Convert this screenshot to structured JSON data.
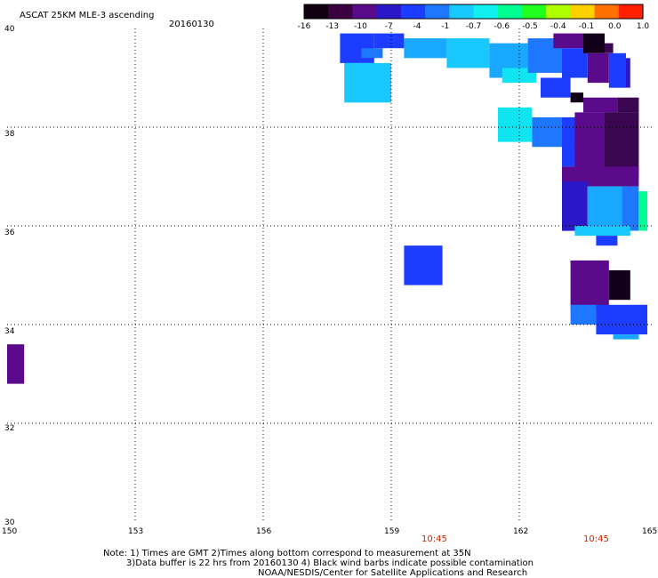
{
  "title": "ASCAT 25KM MLE-3 ascending",
  "date": "20160130",
  "lon_labels": [
    "150",
    "153",
    "156",
    "159",
    "162",
    "165"
  ],
  "lat_labels": [
    "40",
    "38",
    "36",
    "34",
    "32",
    "30"
  ],
  "colorbar": {
    "labels": [
      "-16",
      "-13",
      "-10",
      "-7",
      "-4",
      "-1",
      "-0.7",
      "-0.6",
      "-0.5",
      "-0.4",
      "-0.1",
      "0.0",
      "1.0"
    ],
    "colors": [
      "#100010",
      "#3a0040",
      "#5a0a8a",
      "#2a18c8",
      "#1c3cff",
      "#1e78ff",
      "#18c8ff",
      "#10f0f0",
      "#00ff90",
      "#20ff20",
      "#b0ff00",
      "#ffd000",
      "#ff7000",
      "#ff2000"
    ]
  },
  "times": [
    "10:45",
    "10:45"
  ],
  "notes": [
    "Note: 1) Times are GMT 2)Times along bottom correspond to measurement at 35N",
    "3)Data buffer is 22 hrs from 20160130 4) Black wind barbs indicate possible contamination",
    "NOAA/NESDIS/Center for Satellite Applications and Research"
  ],
  "map_data": {
    "lon_range": [
      150,
      165
    ],
    "lat_range": [
      30,
      40
    ],
    "color_key": {
      "a": "#120018",
      "b": "#3a0650",
      "c": "#5a0a8a",
      "d": "#2a18c8",
      "e": "#1c3cff",
      "f": "#1e78ff",
      "g": "#18a8ff",
      "h": "#18c8ff",
      "i": "#10e4f0",
      "j": "#20ff20",
      "k": "#00ff90"
    },
    "cells": [
      {
        "lon": [
          157.8,
          158.6
        ],
        "lat": [
          39.3,
          39.9
        ],
        "c": "e"
      },
      {
        "lon": [
          158.6,
          159.3
        ],
        "lat": [
          39.6,
          39.9
        ],
        "c": "e"
      },
      {
        "lon": [
          158.3,
          158.8
        ],
        "lat": [
          39.4,
          39.6
        ],
        "c": "f"
      },
      {
        "lon": [
          157.9,
          159.0
        ],
        "lat": [
          38.5,
          39.3
        ],
        "c": "h"
      },
      {
        "lon": [
          159.3,
          160.3
        ],
        "lat": [
          39.4,
          39.8
        ],
        "c": "g"
      },
      {
        "lon": [
          160.3,
          161.3
        ],
        "lat": [
          39.2,
          39.8
        ],
        "c": "h"
      },
      {
        "lon": [
          161.3,
          162.2
        ],
        "lat": [
          39.0,
          39.7
        ],
        "c": "g"
      },
      {
        "lon": [
          161.6,
          162.4
        ],
        "lat": [
          38.9,
          39.2
        ],
        "c": "i"
      },
      {
        "lon": [
          162.2,
          163.0
        ],
        "lat": [
          39.1,
          39.8
        ],
        "c": "f"
      },
      {
        "lon": [
          163.0,
          163.6
        ],
        "lat": [
          39.0,
          39.6
        ],
        "c": "e"
      },
      {
        "lon": [
          162.8,
          163.5
        ],
        "lat": [
          39.6,
          39.9
        ],
        "c": "c"
      },
      {
        "lon": [
          163.5,
          164.0
        ],
        "lat": [
          39.5,
          39.9
        ],
        "c": "a"
      },
      {
        "lon": [
          164.0,
          164.2
        ],
        "lat": [
          39.5,
          39.7
        ],
        "c": "b"
      },
      {
        "lon": [
          163.6,
          164.1
        ],
        "lat": [
          38.9,
          39.5
        ],
        "c": "c"
      },
      {
        "lon": [
          164.1,
          164.5
        ],
        "lat": [
          38.8,
          39.5
        ],
        "c": "e"
      },
      {
        "lon": [
          164.5,
          164.6
        ],
        "lat": [
          38.8,
          39.4
        ],
        "c": "d"
      },
      {
        "lon": [
          162.5,
          163.2
        ],
        "lat": [
          38.6,
          39.0
        ],
        "c": "e"
      },
      {
        "lon": [
          163.2,
          163.5
        ],
        "lat": [
          38.5,
          38.7
        ],
        "c": "a"
      },
      {
        "lon": [
          163.5,
          164.3
        ],
        "lat": [
          38.3,
          38.6
        ],
        "c": "c"
      },
      {
        "lon": [
          164.3,
          164.8
        ],
        "lat": [
          38.3,
          38.6
        ],
        "c": "b"
      },
      {
        "lon": [
          161.5,
          162.3
        ],
        "lat": [
          37.7,
          38.4
        ],
        "c": "i"
      },
      {
        "lon": [
          162.3,
          163.0
        ],
        "lat": [
          37.6,
          38.2
        ],
        "c": "f"
      },
      {
        "lon": [
          163.0,
          163.5
        ],
        "lat": [
          37.2,
          38.2
        ],
        "c": "e"
      },
      {
        "lon": [
          163.5,
          163.8
        ],
        "lat": [
          37.5,
          38.0
        ],
        "c": "g"
      },
      {
        "lon": [
          163.3,
          164.0
        ],
        "lat": [
          37.0,
          38.3
        ],
        "c": "c"
      },
      {
        "lon": [
          164.0,
          164.8
        ],
        "lat": [
          37.0,
          38.3
        ],
        "c": "b"
      },
      {
        "lon": [
          163.0,
          164.8
        ],
        "lat": [
          36.8,
          37.2
        ],
        "c": "c"
      },
      {
        "lon": [
          163.0,
          163.6
        ],
        "lat": [
          35.9,
          36.9
        ],
        "c": "d"
      },
      {
        "lon": [
          163.6,
          164.4
        ],
        "lat": [
          36.0,
          36.8
        ],
        "c": "g"
      },
      {
        "lon": [
          164.4,
          164.8
        ],
        "lat": [
          35.9,
          36.8
        ],
        "c": "f"
      },
      {
        "lon": [
          163.3,
          164.6
        ],
        "lat": [
          35.8,
          36.0
        ],
        "c": "h"
      },
      {
        "lon": [
          164.8,
          165.0
        ],
        "lat": [
          35.9,
          36.7
        ],
        "c": "k"
      },
      {
        "lon": [
          163.8,
          164.3
        ],
        "lat": [
          35.6,
          35.8
        ],
        "c": "e"
      },
      {
        "lon": [
          159.3,
          160.2
        ],
        "lat": [
          34.8,
          35.6
        ],
        "c": "e"
      },
      {
        "lon": [
          163.2,
          164.1
        ],
        "lat": [
          34.3,
          35.3
        ],
        "c": "c"
      },
      {
        "lon": [
          164.1,
          164.6
        ],
        "lat": [
          34.5,
          35.1
        ],
        "c": "a"
      },
      {
        "lon": [
          163.2,
          163.8
        ],
        "lat": [
          34.0,
          34.4
        ],
        "c": "f"
      },
      {
        "lon": [
          163.8,
          165.0
        ],
        "lat": [
          33.8,
          34.4
        ],
        "c": "e"
      },
      {
        "lon": [
          164.2,
          164.8
        ],
        "lat": [
          33.7,
          33.8
        ],
        "c": "g"
      },
      {
        "lon": [
          150.0,
          150.4
        ],
        "lat": [
          32.8,
          33.6
        ],
        "c": "c"
      }
    ]
  }
}
